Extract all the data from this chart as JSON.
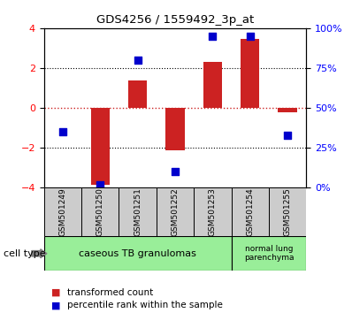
{
  "title": "GDS4256 / 1559492_3p_at",
  "samples": [
    "GSM501249",
    "GSM501250",
    "GSM501251",
    "GSM501252",
    "GSM501253",
    "GSM501254",
    "GSM501255"
  ],
  "transformed_count": [
    0.02,
    -3.85,
    1.4,
    -2.1,
    2.3,
    3.45,
    -0.2
  ],
  "percentile_rank": [
    35,
    2,
    80,
    10,
    95,
    95,
    33
  ],
  "ylim_left": [
    -4,
    4
  ],
  "ylim_right": [
    0,
    100
  ],
  "yticks_left": [
    -4,
    -2,
    0,
    2,
    4
  ],
  "yticks_right": [
    0,
    25,
    50,
    75,
    100
  ],
  "ytick_labels_right": [
    "0%",
    "25%",
    "50%",
    "75%",
    "100%"
  ],
  "bar_color": "#cc2222",
  "scatter_color": "#0000cc",
  "zero_line_color": "#cc2222",
  "group1_label": "caseous TB granulomas",
  "group2_label": "normal lung\nparenchyma",
  "group1_indices": [
    0,
    1,
    2,
    3,
    4
  ],
  "group2_indices": [
    5,
    6
  ],
  "group_bg_color": "#99ee99",
  "sample_box_color": "#cccccc",
  "legend_label_red": "transformed count",
  "legend_label_blue": "percentile rank within the sample",
  "cell_type_label": "cell type",
  "fig_width": 3.98,
  "fig_height": 3.54,
  "dpi": 100
}
